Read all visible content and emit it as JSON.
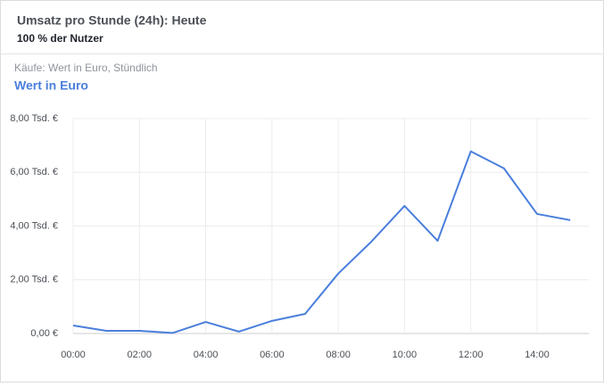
{
  "chart_data": {
    "type": "line",
    "title": "Umsatz pro Stunde (24h): Heute",
    "subtitle": "100 % der Nutzer",
    "metric_label": "Käufe: Wert in Euro, Stündlich",
    "categories": [
      "00:00",
      null,
      "02:00",
      null,
      "04:00",
      null,
      "06:00",
      null,
      "08:00",
      null,
      "10:00",
      null,
      "12:00",
      null,
      "14:00",
      null
    ],
    "series": [
      {
        "name": "Wert in Euro",
        "color": "#4a7fdc",
        "values": [
          0.3,
          0.1,
          0.1,
          0.02,
          0.43,
          0.07,
          0.47,
          0.73,
          2.23,
          3.42,
          4.75,
          3.45,
          6.78,
          6.15,
          4.45,
          4.22
        ]
      }
    ],
    "ylim": [
      0,
      8
    ],
    "yticks": [
      {
        "value": 0,
        "label": "0,00 €"
      },
      {
        "value": 2,
        "label": "2,00 Tsd. €"
      },
      {
        "value": 4,
        "label": "4,00 Tsd. €"
      },
      {
        "value": 6,
        "label": "6,00 Tsd. €"
      },
      {
        "value": 8,
        "label": "8,00 Tsd. €"
      }
    ],
    "grid": true
  }
}
